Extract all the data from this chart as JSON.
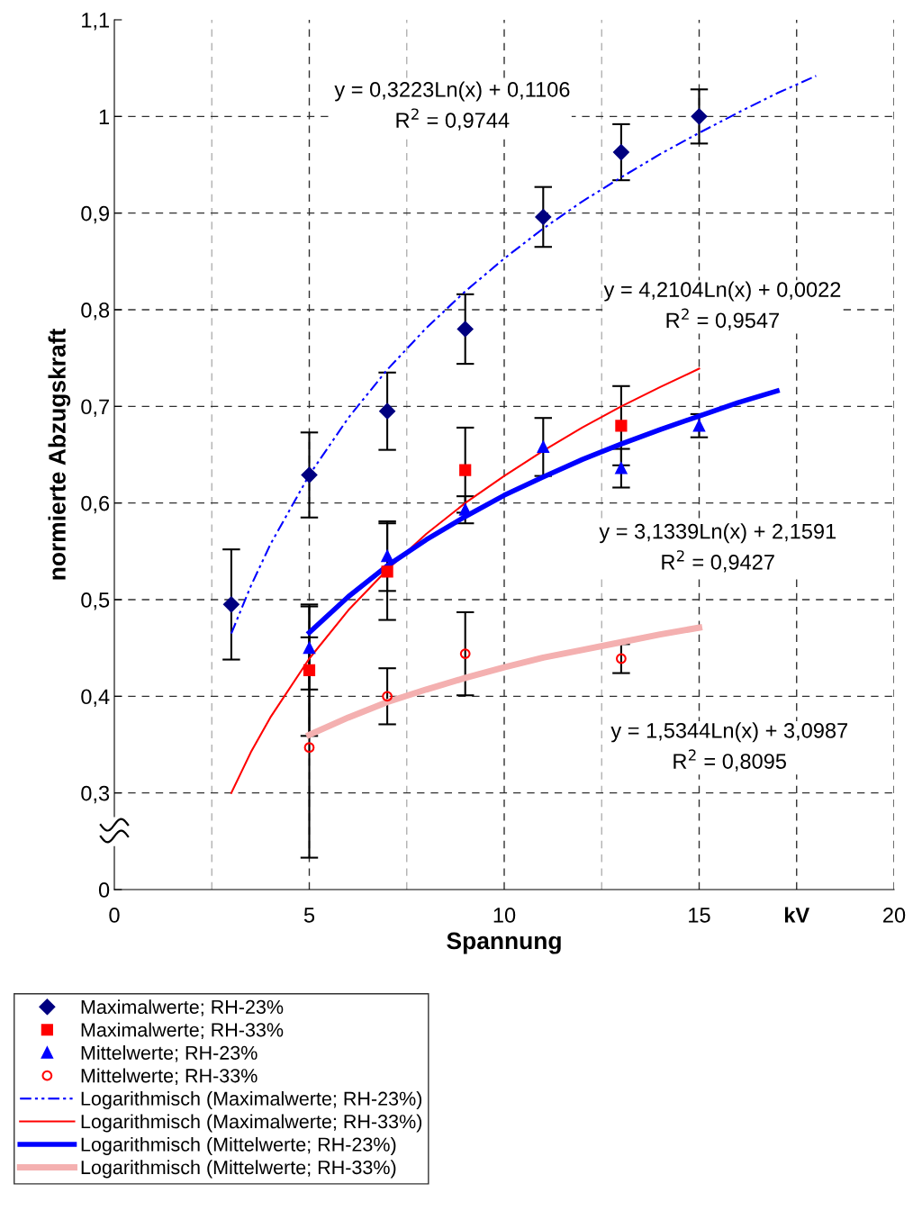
{
  "chart_data": {
    "type": "scatter",
    "xlabel": "Spannung",
    "ylabel": "normierte Abzugskraft",
    "xlim": [
      0,
      20
    ],
    "xticks": [
      0,
      {
        "value": 2.5,
        "label": null
      },
      5,
      {
        "value": 7.5,
        "label": null
      },
      10,
      {
        "value": 12.5,
        "label": null
      },
      15,
      {
        "value": 17.5,
        "label": "kV"
      },
      20
    ],
    "ylim": [
      0.2,
      1.1
    ],
    "yticks": [
      {
        "value": 0.2,
        "label": "0"
      },
      {
        "value": 0.3,
        "label": "0,3"
      },
      {
        "value": 0.4,
        "label": "0,4"
      },
      {
        "value": 0.5,
        "label": "0,5"
      },
      {
        "value": 0.6,
        "label": "0,6"
      },
      {
        "value": 0.7,
        "label": "0,7"
      },
      {
        "value": 0.8,
        "label": "0,8"
      },
      {
        "value": 0.9,
        "label": "0,9"
      },
      {
        "value": 1.0,
        "label": "1"
      },
      {
        "value": 1.1,
        "label": "1,1"
      }
    ],
    "grid": true,
    "legend": "bottom left",
    "series": [
      {
        "name": "Maximalwerte; RH-23%",
        "marker": "diamond",
        "color": "#000080",
        "x": [
          3,
          5,
          7,
          9,
          11,
          13,
          15
        ],
        "values": [
          0.495,
          0.629,
          0.695,
          0.78,
          0.896,
          0.963,
          1.0
        ],
        "errors": [
          0.057,
          0.044,
          0.04,
          0.036,
          0.031,
          0.029,
          0.028
        ]
      },
      {
        "name": "Maximalwerte; RH-33%",
        "marker": "square",
        "color": "#ff0000",
        "x": [
          5,
          7,
          9,
          13
        ],
        "values": [
          0.427,
          0.529,
          0.634,
          0.68
        ],
        "errors": [
          0.068,
          0.05,
          0.044,
          0.041
        ]
      },
      {
        "name": "Mittelwerte; RH-23%",
        "marker": "triangle",
        "color": "#0000ff",
        "x": [
          5,
          7,
          9,
          11,
          13,
          15
        ],
        "values": [
          0.45,
          0.545,
          0.593,
          0.658,
          0.636,
          0.68
        ],
        "errors": [
          0.043,
          0.036,
          0.014,
          0.03,
          0.02,
          0.012
        ]
      },
      {
        "name": "Mittelwerte; RH-33%",
        "marker": "circle",
        "color": "#ff0000",
        "x": [
          5,
          7,
          9,
          13
        ],
        "values": [
          0.347,
          0.4,
          0.444,
          0.439
        ],
        "errors": [
          0.114,
          0.029,
          0.043,
          0.015
        ]
      },
      {
        "name": "Logarithmisch (Maximalwerte; RH-23%)",
        "type": "line",
        "line_style": "dashdot",
        "color": "#0000ff",
        "x": [
          3,
          3.5,
          4,
          5,
          6,
          7,
          8,
          9,
          10,
          11,
          12,
          13,
          14,
          15,
          16,
          17,
          18
        ],
        "values": [
          0.465,
          0.514,
          0.557,
          0.629,
          0.688,
          0.738,
          0.781,
          0.819,
          0.853,
          0.884,
          0.912,
          0.937,
          0.961,
          0.983,
          1.004,
          1.024,
          1.042
        ]
      },
      {
        "name": "Logarithmisch (Maximalwerte; RH-33%)",
        "type": "line",
        "line_style": "solid",
        "color": "#ff0000",
        "x": [
          3,
          3.5,
          4,
          5,
          6,
          7,
          8,
          9,
          10,
          11,
          12,
          13,
          14,
          15
        ],
        "values": [
          0.3,
          0.342,
          0.378,
          0.439,
          0.489,
          0.531,
          0.568,
          0.6,
          0.628,
          0.654,
          0.678,
          0.7,
          0.72,
          0.739
        ]
      },
      {
        "name": "Logarithmisch (Mittelwerte; RH-23%)",
        "type": "line",
        "line_style": "solid",
        "color": "#0000ff",
        "x": [
          5,
          6,
          7,
          8,
          9,
          10,
          11,
          12,
          13,
          14,
          15,
          16,
          17
        ],
        "values": [
          0.466,
          0.503,
          0.535,
          0.562,
          0.586,
          0.608,
          0.627,
          0.645,
          0.661,
          0.676,
          0.69,
          0.704,
          0.716
        ]
      },
      {
        "name": "Logarithmisch (Mittelwerte; RH-33%)",
        "type": "line",
        "line_style": "solid",
        "color": "#f4b0b0",
        "x": [
          5,
          6,
          7,
          8,
          9,
          10,
          11,
          12,
          13,
          14,
          15
        ],
        "values": [
          0.36,
          0.378,
          0.394,
          0.407,
          0.419,
          0.43,
          0.44,
          0.448,
          0.456,
          0.464,
          0.471
        ]
      }
    ],
    "annotations": [
      "y = 0,3223Ln(x) + 0,1106\nR$^{2}$ = 0,9744",
      "y = 4,2104Ln(x) + 0,0022\nR$^{2}$ = 0,9547",
      "y = 3,1339Ln(x) + 2,1591\nR$^{2}$ = 0,9427",
      "y = 1,5344Ln(x) + 3,0987\nR$^{2}$ = 0,8095"
    ]
  }
}
